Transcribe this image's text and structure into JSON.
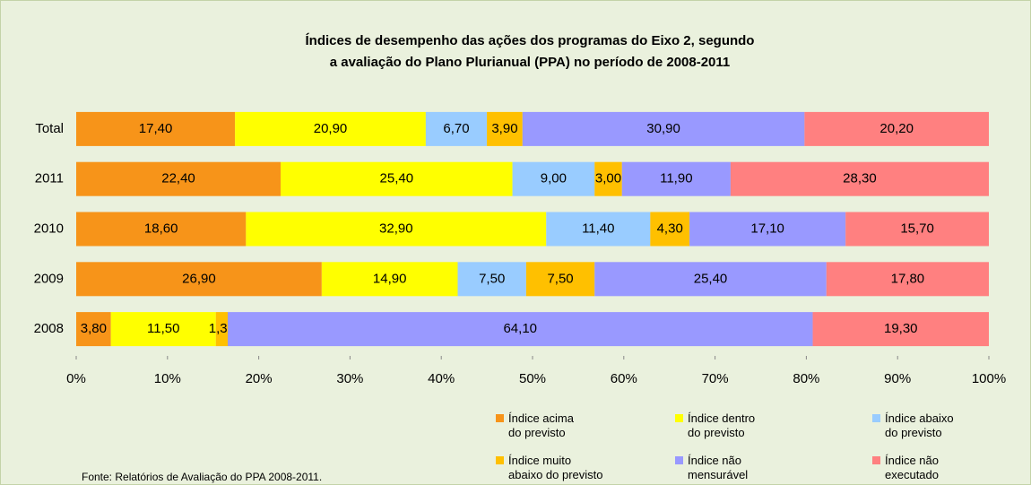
{
  "chart_data": {
    "type": "stacked-barh",
    "title": "Índices de desempenho das ações dos programas do Eixo 2,  segundo\na avaliação do Plano Plurianual (PPA) no período de 2008-2011",
    "categories": [
      "Total",
      "2011",
      "2010",
      "2009",
      "2008"
    ],
    "series": [
      {
        "name": "Índice acima\ndo previsto",
        "color": "#f79419",
        "values": [
          17.4,
          22.4,
          18.6,
          26.9,
          3.8
        ],
        "value_labels": [
          "17,40",
          "22,40",
          "18,60",
          "26,90",
          "3,80"
        ]
      },
      {
        "name": "Índice dentro\ndo previsto",
        "color": "#ffff00",
        "values": [
          20.9,
          25.4,
          32.9,
          14.9,
          11.5
        ],
        "value_labels": [
          "20,90",
          "25,40",
          "32,90",
          "14,90",
          "11,50"
        ]
      },
      {
        "name": "Índice abaixo\ndo previsto",
        "color": "#99ccff",
        "values": [
          6.7,
          9.0,
          11.4,
          7.5,
          null
        ],
        "value_labels": [
          "6,70",
          "9,00",
          "11,40",
          "7,50",
          null
        ]
      },
      {
        "name": "Índice muito\nabaixo do previsto",
        "color": "#ffc000",
        "values": [
          3.9,
          3.0,
          4.3,
          7.5,
          1.3
        ],
        "value_labels": [
          "3,90",
          "3,00",
          "4,30",
          "7,50",
          "1,30"
        ]
      },
      {
        "name": "Índice não\nmensurável",
        "color": "#9999ff",
        "values": [
          30.9,
          11.9,
          17.1,
          25.4,
          64.1
        ],
        "value_labels": [
          "30,90",
          "11,90",
          "17,10",
          "25,40",
          "64,10"
        ]
      },
      {
        "name": "Índice não\nexecutado",
        "color": "#ff8080",
        "values": [
          20.2,
          28.3,
          15.7,
          17.8,
          19.3
        ],
        "value_labels": [
          "20,20",
          "28,30",
          "15,70",
          "17,80",
          "19,30"
        ]
      }
    ],
    "xlim": [
      0,
      100
    ],
    "xticks": [
      {
        "value": 0,
        "label": "0%"
      },
      {
        "value": 10,
        "label": "10%"
      },
      {
        "value": 20,
        "label": "20%"
      },
      {
        "value": 30,
        "label": "30%"
      },
      {
        "value": 40,
        "label": "40%"
      },
      {
        "value": 50,
        "label": "50%"
      },
      {
        "value": 60,
        "label": "60%"
      },
      {
        "value": 70,
        "label": "70%"
      },
      {
        "value": 80,
        "label": "80%"
      },
      {
        "value": 90,
        "label": "90%"
      },
      {
        "value": 100,
        "label": "100%"
      }
    ],
    "legend": "bottom-right",
    "source": "Fonte: Relatórios de Avaliação do PPA 2008-2011."
  }
}
